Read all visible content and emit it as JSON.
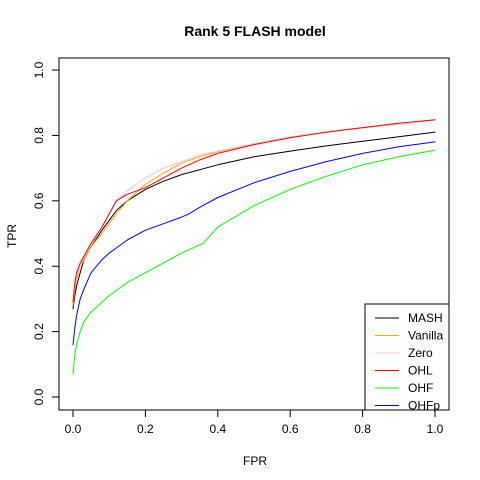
{
  "chart_data": {
    "type": "line",
    "title": "Rank 5 FLASH model",
    "xlabel": "FPR",
    "ylabel": "TPR",
    "xlim": [
      0,
      1
    ],
    "ylim": [
      0,
      1
    ],
    "xticks": [
      "0.0",
      "0.2",
      "0.4",
      "0.6",
      "0.8",
      "1.0"
    ],
    "yticks": [
      "0.0",
      "0.2",
      "0.4",
      "0.6",
      "0.8",
      "1.0"
    ],
    "grid": false,
    "legend_position": "bottom-right",
    "series": [
      {
        "name": "MASH",
        "color": "#000000",
        "x": [
          0,
          0.005,
          0.01,
          0.02,
          0.03,
          0.05,
          0.08,
          0.1,
          0.12,
          0.15,
          0.2,
          0.25,
          0.3,
          0.4,
          0.5,
          0.6,
          0.7,
          0.8,
          0.9,
          1.0
        ],
        "y": [
          0.27,
          0.31,
          0.34,
          0.38,
          0.42,
          0.46,
          0.51,
          0.54,
          0.57,
          0.6,
          0.635,
          0.66,
          0.68,
          0.71,
          0.735,
          0.752,
          0.768,
          0.782,
          0.796,
          0.81
        ]
      },
      {
        "name": "Vanilla",
        "color": "#ffa500",
        "x": [
          0,
          0.005,
          0.01,
          0.02,
          0.03,
          0.05,
          0.08,
          0.1,
          0.12,
          0.15,
          0.2,
          0.25,
          0.3,
          0.35,
          0.4,
          0.5,
          0.6,
          0.7,
          0.8,
          0.9,
          1.0
        ],
        "y": [
          0.28,
          0.33,
          0.36,
          0.4,
          0.42,
          0.46,
          0.5,
          0.53,
          0.56,
          0.6,
          0.65,
          0.685,
          0.715,
          0.735,
          0.75,
          0.775,
          0.795,
          0.81,
          0.823,
          0.835,
          0.847
        ]
      },
      {
        "name": "Zero",
        "color": "#ffc0cb",
        "x": [
          0,
          0.005,
          0.01,
          0.02,
          0.03,
          0.05,
          0.08,
          0.1,
          0.12,
          0.15,
          0.2,
          0.25,
          0.3,
          0.35,
          0.4,
          0.5,
          0.6,
          0.7,
          0.8,
          0.9,
          1.0
        ],
        "y": [
          0.29,
          0.34,
          0.37,
          0.4,
          0.43,
          0.47,
          0.52,
          0.56,
          0.6,
          0.63,
          0.67,
          0.7,
          0.72,
          0.74,
          0.752,
          0.775,
          0.795,
          0.81,
          0.823,
          0.835,
          0.847
        ]
      },
      {
        "name": "OHL",
        "color": "#ff0000",
        "x": [
          0,
          0.005,
          0.01,
          0.02,
          0.03,
          0.05,
          0.08,
          0.1,
          0.12,
          0.15,
          0.2,
          0.25,
          0.3,
          0.35,
          0.4,
          0.5,
          0.6,
          0.7,
          0.8,
          0.9,
          1.0
        ],
        "y": [
          0.29,
          0.35,
          0.38,
          0.41,
          0.43,
          0.47,
          0.52,
          0.56,
          0.6,
          0.62,
          0.64,
          0.67,
          0.7,
          0.725,
          0.745,
          0.772,
          0.793,
          0.81,
          0.824,
          0.837,
          0.848
        ]
      },
      {
        "name": "OHF",
        "color": "#00ff00",
        "x": [
          0,
          0.005,
          0.01,
          0.02,
          0.03,
          0.05,
          0.08,
          0.1,
          0.15,
          0.2,
          0.25,
          0.3,
          0.35,
          0.36,
          0.4,
          0.5,
          0.6,
          0.7,
          0.8,
          0.9,
          1.0
        ],
        "y": [
          0.07,
          0.13,
          0.16,
          0.2,
          0.23,
          0.26,
          0.29,
          0.31,
          0.35,
          0.38,
          0.41,
          0.44,
          0.465,
          0.47,
          0.52,
          0.585,
          0.635,
          0.675,
          0.71,
          0.735,
          0.755
        ]
      },
      {
        "name": "OHFp",
        "color": "#0000ff",
        "x": [
          0,
          0.005,
          0.01,
          0.02,
          0.03,
          0.05,
          0.08,
          0.1,
          0.15,
          0.2,
          0.25,
          0.3,
          0.32,
          0.35,
          0.4,
          0.5,
          0.6,
          0.7,
          0.8,
          0.9,
          1.0
        ],
        "y": [
          0.16,
          0.21,
          0.25,
          0.3,
          0.33,
          0.38,
          0.42,
          0.44,
          0.48,
          0.51,
          0.53,
          0.55,
          0.56,
          0.58,
          0.61,
          0.655,
          0.69,
          0.72,
          0.745,
          0.765,
          0.78
        ]
      }
    ]
  }
}
